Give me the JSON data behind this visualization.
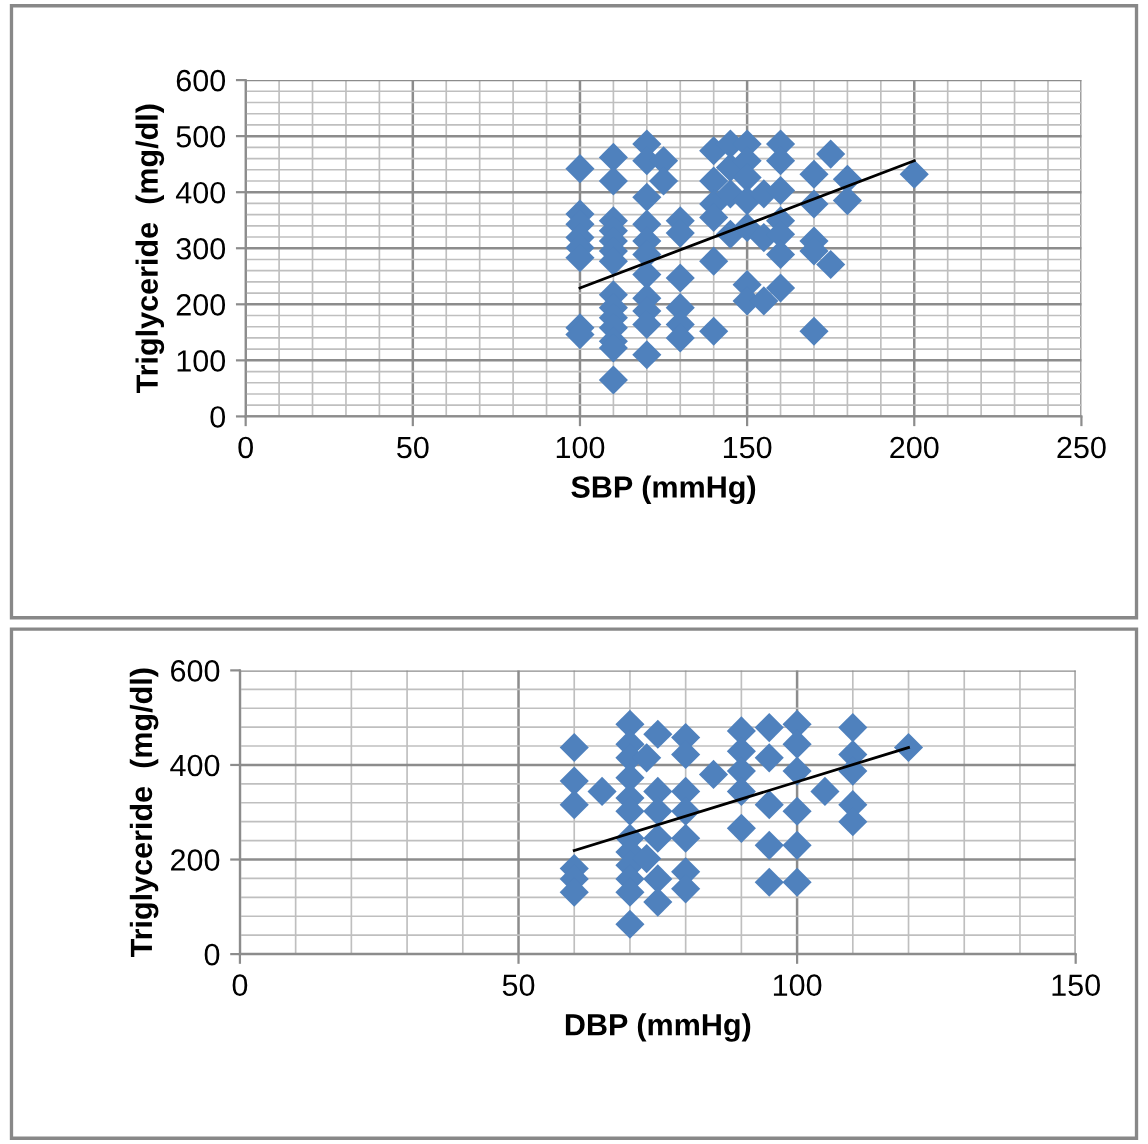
{
  "chart_data": [
    {
      "type": "scatter",
      "xlabel": "SBP (mmHg)",
      "ylabel": "Triglyceride  (mg/dl)",
      "xlim": [
        0,
        250
      ],
      "ylim": [
        0,
        600
      ],
      "xticks": [
        0,
        50,
        100,
        150,
        200,
        250
      ],
      "yticks": [
        0,
        100,
        200,
        300,
        400,
        500,
        600
      ],
      "grid": true,
      "legend": false,
      "marker": "diamond",
      "series": [
        {
          "color": "#4f81bd",
          "x": [
            100,
            100,
            100,
            100,
            100,
            100,
            100,
            100,
            110,
            110,
            110,
            110,
            110,
            110,
            110,
            110,
            110,
            110,
            110,
            110,
            110,
            110,
            120,
            120,
            120,
            120,
            120,
            120,
            120,
            120,
            120,
            120,
            120,
            125,
            125,
            130,
            130,
            130,
            130,
            130,
            130,
            140,
            140,
            140,
            140,
            140,
            140,
            145,
            145,
            145,
            145,
            150,
            150,
            150,
            150,
            150,
            150,
            150,
            155,
            155,
            155,
            160,
            160,
            160,
            160,
            160,
            160,
            160,
            170,
            170,
            170,
            170,
            170,
            175,
            175,
            180,
            180,
            200
          ],
          "values": [
            442,
            361,
            343,
            319,
            301,
            283,
            158,
            146,
            462,
            420,
            349,
            331,
            313,
            295,
            277,
            217,
            194,
            176,
            158,
            134,
            122,
            65,
            486,
            456,
            391,
            343,
            313,
            289,
            253,
            211,
            188,
            164,
            110,
            456,
            420,
            349,
            327,
            247,
            194,
            164,
            140,
            474,
            420,
            379,
            355,
            277,
            152,
            486,
            444,
            397,
            325,
            486,
            456,
            426,
            385,
            337,
            235,
            206,
            397,
            319,
            206,
            486,
            456,
            403,
            349,
            325,
            289,
            229,
            432,
            379,
            313,
            295,
            152,
            468,
            271,
            423,
            385,
            432
          ]
        },
        {
          "type": "line",
          "color": "#000000",
          "marker": "none",
          "x": [
            100,
            200
          ],
          "values": [
            229,
            456
          ]
        }
      ]
    },
    {
      "type": "scatter",
      "xlabel": "DBP (mmHg)",
      "ylabel": "Triglyceride  (mg/dl)",
      "xlim": [
        0,
        150
      ],
      "ylim": [
        0,
        600
      ],
      "xticks": [
        0,
        50,
        100,
        150
      ],
      "yticks": [
        0,
        200,
        400,
        600
      ],
      "grid": true,
      "legend": false,
      "marker": "diamond",
      "series": [
        {
          "color": "#4f81bd",
          "x": [
            60,
            60,
            60,
            60,
            60,
            60,
            65,
            70,
            70,
            70,
            70,
            70,
            70,
            70,
            70,
            70,
            70,
            70,
            70,
            73,
            73,
            75,
            75,
            75,
            75,
            75,
            75,
            80,
            80,
            80,
            80,
            80,
            80,
            80,
            85,
            90,
            90,
            90,
            90,
            90,
            95,
            95,
            95,
            95,
            95,
            100,
            100,
            100,
            100,
            100,
            100,
            105,
            110,
            110,
            110,
            110,
            110,
            120
          ],
          "values": [
            437,
            366,
            316,
            181,
            159,
            131,
            344,
            486,
            444,
            415,
            373,
            330,
            302,
            245,
            216,
            188,
            159,
            131,
            63,
            415,
            202,
            465,
            344,
            302,
            245,
            159,
            110,
            458,
            422,
            344,
            302,
            245,
            174,
            138,
            380,
            472,
            429,
            387,
            344,
            266,
            479,
            415,
            316,
            230,
            152,
            486,
            444,
            387,
            302,
            230,
            152,
            344,
            479,
            422,
            387,
            316,
            280,
            437
          ]
        },
        {
          "type": "line",
          "color": "#000000",
          "marker": "none",
          "x": [
            60,
            120
          ],
          "values": [
            219,
            437
          ]
        }
      ]
    }
  ]
}
